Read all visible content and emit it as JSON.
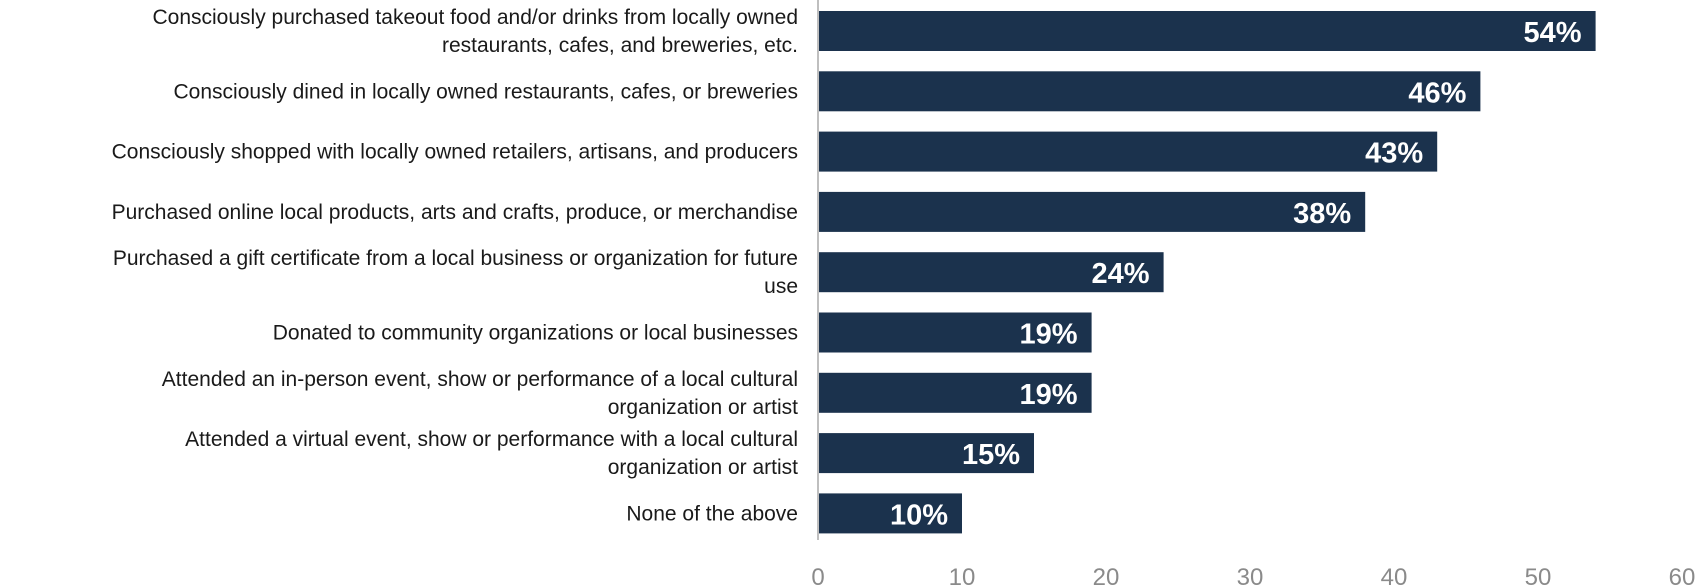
{
  "chart_data": {
    "type": "bar",
    "orientation": "horizontal",
    "title": "",
    "xlabel": "",
    "ylabel": "",
    "categories": [
      [
        "Consciously purchased takeout food and/or drinks from locally owned",
        "restaurants, cafes, and breweries, etc."
      ],
      [
        "Consciously dined in locally owned restaurants, cafes, or breweries"
      ],
      [
        "Consciously shopped with locally owned retailers, artisans, and producers"
      ],
      [
        "Purchased online local products, arts and crafts, produce, or merchandise"
      ],
      [
        "Purchased a gift certificate from a local business or organization for future",
        "use"
      ],
      [
        "Donated to community organizations or local businesses"
      ],
      [
        "Attended an in-person event, show or performance of a local cultural",
        "organization or artist"
      ],
      [
        "Attended a virtual event, show or performance with a local cultural",
        "organization or artist"
      ],
      [
        "None of the above"
      ]
    ],
    "values": [
      54,
      46,
      43,
      38,
      24,
      19,
      19,
      15,
      10
    ],
    "value_labels": [
      "54%",
      "46%",
      "43%",
      "38%",
      "24%",
      "19%",
      "19%",
      "15%",
      "10%"
    ],
    "xlim": [
      0,
      60
    ],
    "xticks": [
      0,
      10,
      20,
      30,
      40,
      50,
      60
    ],
    "xtick_labels": [
      "0",
      "10",
      "20",
      "30",
      "40",
      "50",
      "60"
    ],
    "grid": false,
    "colors": {
      "bar": "#1b324d",
      "value_text": "#ffffff",
      "axis": "#bfbfbf",
      "tick_text": "#8a8a8a"
    }
  }
}
